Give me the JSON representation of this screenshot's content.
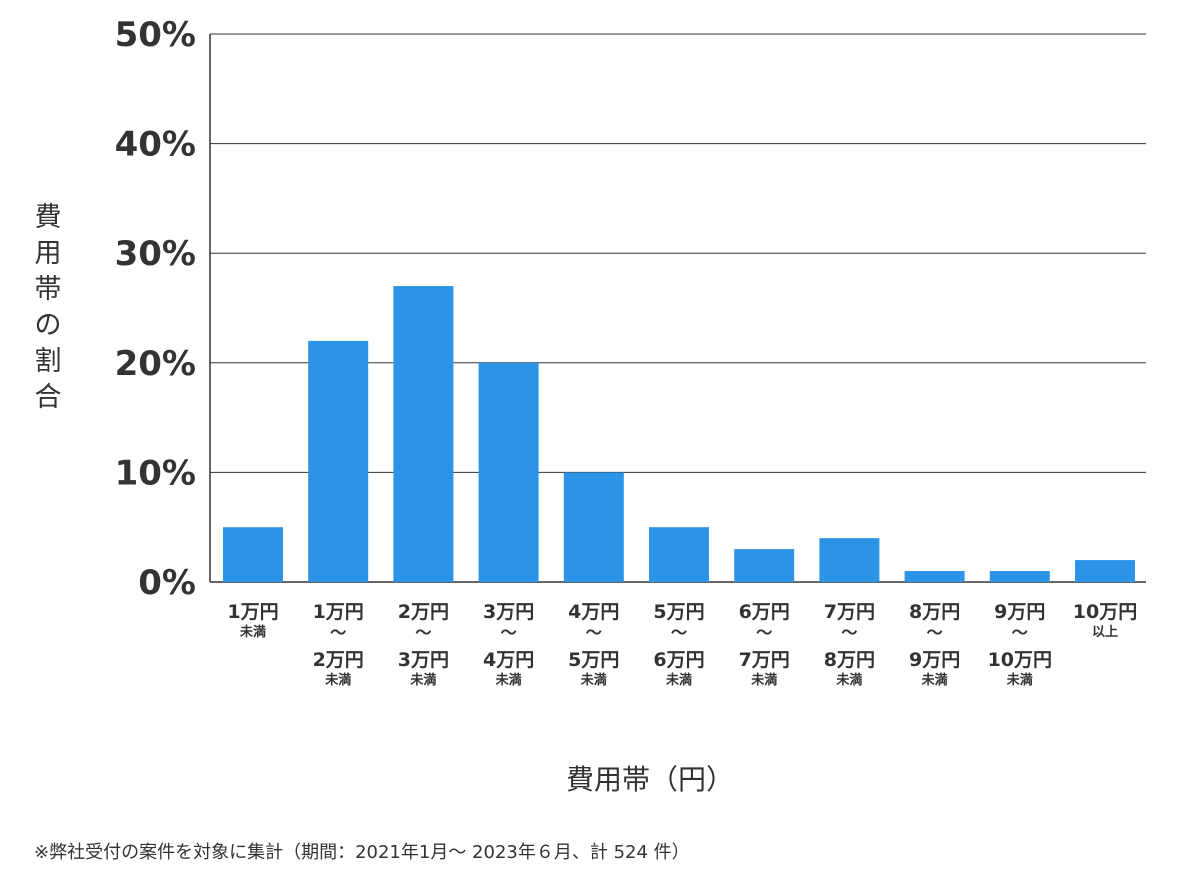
{
  "chart_data": {
    "type": "bar",
    "categories": [
      {
        "lines": [
          "1万円",
          "未満"
        ]
      },
      {
        "lines": [
          "1万円",
          "〜",
          "2万円",
          "未満"
        ]
      },
      {
        "lines": [
          "2万円",
          "〜",
          "3万円",
          "未満"
        ]
      },
      {
        "lines": [
          "3万円",
          "〜",
          "4万円",
          "未満"
        ]
      },
      {
        "lines": [
          "4万円",
          "〜",
          "5万円",
          "未満"
        ]
      },
      {
        "lines": [
          "5万円",
          "〜",
          "6万円",
          "未満"
        ]
      },
      {
        "lines": [
          "6万円",
          "〜",
          "7万円",
          "未満"
        ]
      },
      {
        "lines": [
          "7万円",
          "〜",
          "8万円",
          "未満"
        ]
      },
      {
        "lines": [
          "8万円",
          "〜",
          "9万円",
          "未満"
        ]
      },
      {
        "lines": [
          "9万円",
          "〜",
          "10万円",
          "未満"
        ]
      },
      {
        "lines": [
          "10万円",
          "以上"
        ]
      }
    ],
    "values": [
      5,
      22,
      27,
      20,
      10,
      5,
      3,
      4,
      1,
      1,
      2
    ],
    "ylim": [
      0,
      50
    ],
    "yticks": [
      "0%",
      "10%",
      "20%",
      "30%",
      "40%",
      "50%"
    ],
    "ylabel": "費用帯の割合",
    "xlabel": "費用帯（円）",
    "grid": true,
    "bar_color": "#2b94e6",
    "grid_color": "#333333"
  },
  "footnote": "※弊社受付の案件を対象に集計（期間：2021年1月～ 2023年６月、計 524 件）"
}
